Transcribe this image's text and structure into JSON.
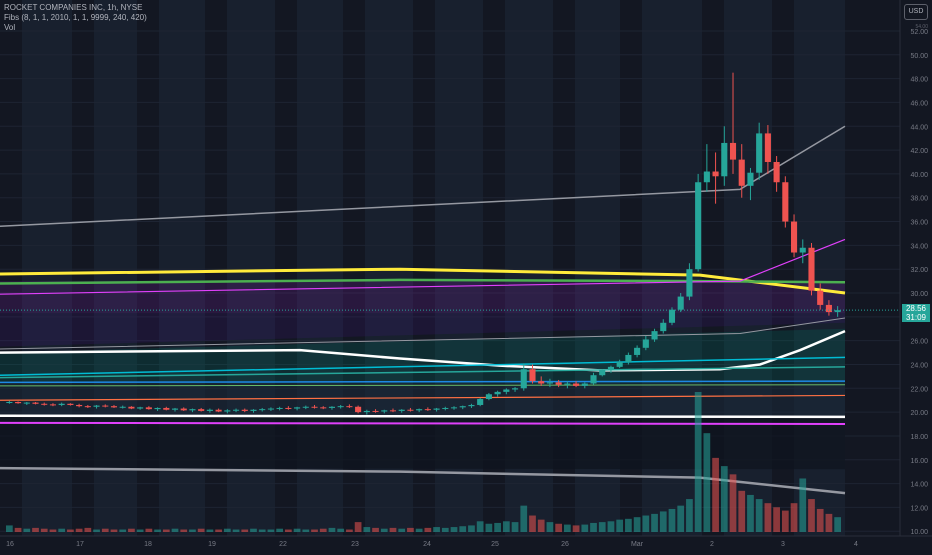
{
  "legend": {
    "symbol_line": "ROCKET COMPANIES INC, 1h, NYSE",
    "fibs_line": "Fibs (8, 1, 1, 2010, 1, 1, 9999, 240, 420)",
    "vol_line": "Vol"
  },
  "price_axis": {
    "currency": "USD",
    "top_label": "54.00",
    "ticks": [
      "52.00",
      "50.00",
      "48.00",
      "46.00",
      "44.00",
      "42.00",
      "40.00",
      "38.00",
      "36.00",
      "34.00",
      "32.00",
      "30.00",
      "28.00",
      "26.00",
      "24.00",
      "22.00",
      "20.00",
      "18.00",
      "16.00",
      "14.00",
      "12.00",
      "10.00"
    ],
    "last_price": "28.56",
    "countdown": "31:09"
  },
  "time_axis": {
    "labels": [
      "16",
      "17",
      "18",
      "19",
      "22",
      "23",
      "24",
      "25",
      "26",
      "Mar",
      "2",
      "3",
      "4"
    ]
  },
  "colors": {
    "background": "#131722",
    "up": "#26a69a",
    "down": "#ef5350",
    "accent": "#26a69a"
  },
  "chart_data": {
    "type": "candlestick",
    "title": "ROCKET COMPANIES INC, 1h, NYSE",
    "ylim": [
      9.6,
      54.6
    ],
    "ticks": [
      10,
      12,
      14,
      16,
      18,
      20,
      22,
      24,
      26,
      28,
      30,
      32,
      34,
      36,
      38,
      40,
      42,
      44,
      46,
      48,
      50,
      52
    ],
    "sessions": [
      "16",
      "17",
      "18",
      "19",
      "22",
      "23",
      "24",
      "25",
      "26",
      "Mar",
      "2",
      "3"
    ],
    "last_price": 28.56,
    "ohlc": [
      [
        20.8,
        20.95,
        20.7,
        20.85
      ],
      [
        20.85,
        20.9,
        20.7,
        20.75
      ],
      [
        20.75,
        20.85,
        20.6,
        20.8
      ],
      [
        20.8,
        20.85,
        20.65,
        20.7
      ],
      [
        20.7,
        20.8,
        20.55,
        20.65
      ],
      [
        20.65,
        20.75,
        20.5,
        20.6
      ],
      [
        20.6,
        20.8,
        20.5,
        20.7
      ],
      [
        20.7,
        20.75,
        20.55,
        20.6
      ],
      [
        20.6,
        20.7,
        20.4,
        20.5
      ],
      [
        20.5,
        20.6,
        20.35,
        20.45
      ],
      [
        20.45,
        20.6,
        20.3,
        20.55
      ],
      [
        20.55,
        20.65,
        20.4,
        20.5
      ],
      [
        20.5,
        20.6,
        20.35,
        20.4
      ],
      [
        20.4,
        20.55,
        20.3,
        20.45
      ],
      [
        20.45,
        20.5,
        20.25,
        20.3
      ],
      [
        20.3,
        20.45,
        20.2,
        20.4
      ],
      [
        20.4,
        20.5,
        20.2,
        20.25
      ],
      [
        20.25,
        20.4,
        20.1,
        20.35
      ],
      [
        20.35,
        20.45,
        20.15,
        20.2
      ],
      [
        20.2,
        20.35,
        20.05,
        20.3
      ],
      [
        20.3,
        20.4,
        20.1,
        20.15
      ],
      [
        20.15,
        20.3,
        20.0,
        20.25
      ],
      [
        20.25,
        20.35,
        20.05,
        20.1
      ],
      [
        20.1,
        20.3,
        19.95,
        20.2
      ],
      [
        20.2,
        20.3,
        20.0,
        20.05
      ],
      [
        20.05,
        20.25,
        19.9,
        20.15
      ],
      [
        20.15,
        20.3,
        20.0,
        20.2
      ],
      [
        20.2,
        20.3,
        20.0,
        20.1
      ],
      [
        20.1,
        20.25,
        19.95,
        20.2
      ],
      [
        20.2,
        20.35,
        20.05,
        20.25
      ],
      [
        20.25,
        20.4,
        20.1,
        20.3
      ],
      [
        20.3,
        20.45,
        20.15,
        20.35
      ],
      [
        20.35,
        20.5,
        20.2,
        20.3
      ],
      [
        20.3,
        20.45,
        20.15,
        20.4
      ],
      [
        20.4,
        20.55,
        20.25,
        20.45
      ],
      [
        20.45,
        20.6,
        20.3,
        20.4
      ],
      [
        20.4,
        20.5,
        20.25,
        20.35
      ],
      [
        20.35,
        20.5,
        20.2,
        20.45
      ],
      [
        20.45,
        20.6,
        20.3,
        20.5
      ],
      [
        20.5,
        20.65,
        20.35,
        20.45
      ],
      [
        20.45,
        20.55,
        19.9,
        20.0
      ],
      [
        20.0,
        20.2,
        19.8,
        20.1
      ],
      [
        20.1,
        20.25,
        19.95,
        20.05
      ],
      [
        20.05,
        20.2,
        19.9,
        20.15
      ],
      [
        20.15,
        20.3,
        20.0,
        20.1
      ],
      [
        20.1,
        20.25,
        19.95,
        20.2
      ],
      [
        20.2,
        20.35,
        20.05,
        20.15
      ],
      [
        20.15,
        20.3,
        20.0,
        20.25
      ],
      [
        20.25,
        20.4,
        20.1,
        20.2
      ],
      [
        20.2,
        20.35,
        20.05,
        20.3
      ],
      [
        20.3,
        20.45,
        20.15,
        20.35
      ],
      [
        20.35,
        20.5,
        20.2,
        20.4
      ],
      [
        20.4,
        20.55,
        20.25,
        20.5
      ],
      [
        20.5,
        20.7,
        20.35,
        20.6
      ],
      [
        20.6,
        21.2,
        20.5,
        21.1
      ],
      [
        21.1,
        21.6,
        21.0,
        21.5
      ],
      [
        21.5,
        21.8,
        21.3,
        21.7
      ],
      [
        21.7,
        22.0,
        21.5,
        21.9
      ],
      [
        21.9,
        22.1,
        21.7,
        22.0
      ],
      [
        22.0,
        24.1,
        21.8,
        23.6
      ],
      [
        23.6,
        24.0,
        22.4,
        22.6
      ],
      [
        22.6,
        23.0,
        22.2,
        22.4
      ],
      [
        22.4,
        22.8,
        22.1,
        22.5
      ],
      [
        22.5,
        22.7,
        22.1,
        22.3
      ],
      [
        22.3,
        22.6,
        22.0,
        22.4
      ],
      [
        22.4,
        22.6,
        22.1,
        22.2
      ],
      [
        22.2,
        22.5,
        22.0,
        22.4
      ],
      [
        22.4,
        23.3,
        22.3,
        23.1
      ],
      [
        23.1,
        23.6,
        23.0,
        23.5
      ],
      [
        23.5,
        23.9,
        23.3,
        23.8
      ],
      [
        23.8,
        24.4,
        23.7,
        24.2
      ],
      [
        24.2,
        25.0,
        24.0,
        24.8
      ],
      [
        24.8,
        25.6,
        24.6,
        25.4
      ],
      [
        25.4,
        26.4,
        25.2,
        26.1
      ],
      [
        26.1,
        27.0,
        25.9,
        26.8
      ],
      [
        26.8,
        27.8,
        26.6,
        27.5
      ],
      [
        27.5,
        28.8,
        27.3,
        28.6
      ],
      [
        28.6,
        30.0,
        28.4,
        29.7
      ],
      [
        29.7,
        32.5,
        29.4,
        32.0
      ],
      [
        32.0,
        40.0,
        31.8,
        39.3
      ],
      [
        39.3,
        42.5,
        38.5,
        40.2
      ],
      [
        40.2,
        41.8,
        37.5,
        39.8
      ],
      [
        39.8,
        44.0,
        39.0,
        42.6
      ],
      [
        42.6,
        48.5,
        40.0,
        41.2
      ],
      [
        41.2,
        42.5,
        38.0,
        39.0
      ],
      [
        39.0,
        40.5,
        37.8,
        40.1
      ],
      [
        40.1,
        44.3,
        39.5,
        43.4
      ],
      [
        43.4,
        44.1,
        40.0,
        41.0
      ],
      [
        41.0,
        41.5,
        38.5,
        39.3
      ],
      [
        39.3,
        39.8,
        35.5,
        36.0
      ],
      [
        36.0,
        36.6,
        33.0,
        33.4
      ],
      [
        33.4,
        34.5,
        32.5,
        33.8
      ],
      [
        33.8,
        34.2,
        29.8,
        30.2
      ],
      [
        30.2,
        30.8,
        28.6,
        29.0
      ],
      [
        29.0,
        29.4,
        28.1,
        28.4
      ],
      [
        28.4,
        28.9,
        28.0,
        28.56
      ]
    ],
    "volume": [
      0.8,
      0.5,
      0.4,
      0.5,
      0.4,
      0.3,
      0.4,
      0.3,
      0.4,
      0.5,
      0.3,
      0.4,
      0.3,
      0.3,
      0.4,
      0.3,
      0.4,
      0.3,
      0.3,
      0.4,
      0.3,
      0.3,
      0.4,
      0.3,
      0.3,
      0.4,
      0.3,
      0.3,
      0.4,
      0.3,
      0.3,
      0.4,
      0.3,
      0.4,
      0.3,
      0.3,
      0.4,
      0.5,
      0.4,
      0.3,
      1.2,
      0.6,
      0.5,
      0.4,
      0.5,
      0.4,
      0.5,
      0.4,
      0.5,
      0.6,
      0.5,
      0.6,
      0.7,
      0.8,
      1.3,
      1.0,
      1.1,
      1.3,
      1.2,
      3.2,
      2.0,
      1.5,
      1.2,
      1.0,
      0.9,
      0.8,
      0.9,
      1.1,
      1.2,
      1.3,
      1.5,
      1.6,
      1.8,
      2.0,
      2.2,
      2.5,
      2.8,
      3.2,
      4.0,
      17.0,
      12.0,
      9.0,
      8.0,
      7.0,
      5.0,
      4.5,
      4.0,
      3.5,
      3.0,
      2.6,
      3.5,
      6.5,
      4.0,
      2.8,
      2.2,
      1.8
    ],
    "overlays": [
      {
        "color": "#9598a1",
        "width": 1.5,
        "points": [
          [
            0,
            35.6
          ],
          [
            740,
            38.7
          ],
          [
            845,
            44.0
          ]
        ]
      },
      {
        "color": "#ffeb3b",
        "width": 3,
        "points": [
          [
            0,
            31.6
          ],
          [
            400,
            32.0
          ],
          [
            700,
            31.5
          ],
          [
            845,
            30.0
          ]
        ]
      },
      {
        "color": "#4caf50",
        "width": 2.5,
        "points": [
          [
            0,
            30.8
          ],
          [
            400,
            31.1
          ],
          [
            700,
            31.0
          ],
          [
            845,
            30.9
          ]
        ]
      },
      {
        "color": "#e040fb",
        "width": 1.2,
        "points": [
          [
            0,
            29.9
          ],
          [
            740,
            31.0
          ],
          [
            845,
            34.5
          ]
        ]
      },
      {
        "color": "#9598a1",
        "width": 1,
        "points": [
          [
            0,
            25.3
          ],
          [
            740,
            26.6
          ],
          [
            845,
            27.9
          ]
        ]
      },
      {
        "color": "#ffffff",
        "width": 2.5,
        "points": [
          [
            0,
            25.0
          ],
          [
            300,
            25.2
          ],
          [
            400,
            24.5
          ],
          [
            500,
            23.9
          ],
          [
            600,
            23.5
          ],
          [
            720,
            23.6
          ],
          [
            760,
            24.0
          ],
          [
            800,
            25.2
          ],
          [
            845,
            26.8
          ]
        ]
      },
      {
        "color": "#00bcd4",
        "width": 1.5,
        "points": [
          [
            0,
            23.1
          ],
          [
            845,
            24.6
          ]
        ]
      },
      {
        "color": "#26a69a",
        "width": 1.5,
        "points": [
          [
            0,
            22.9
          ],
          [
            845,
            23.8
          ]
        ]
      },
      {
        "color": "#1e88e5",
        "width": 1.5,
        "points": [
          [
            0,
            22.5
          ],
          [
            845,
            22.6
          ]
        ]
      },
      {
        "color": "#66bb6a",
        "width": 1,
        "points": [
          [
            0,
            22.2
          ],
          [
            845,
            22.3
          ]
        ]
      },
      {
        "color": "#ff7043",
        "width": 1.2,
        "points": [
          [
            0,
            21.0
          ],
          [
            845,
            21.4
          ]
        ]
      },
      {
        "color": "#ffffff",
        "width": 2.5,
        "points": [
          [
            0,
            19.7
          ],
          [
            845,
            19.6
          ]
        ]
      },
      {
        "color": "#e040fb",
        "width": 2,
        "points": [
          [
            0,
            19.1
          ],
          [
            845,
            19.0
          ]
        ]
      },
      {
        "color": "#9598a1",
        "width": 2.5,
        "points": [
          [
            0,
            15.3
          ],
          [
            400,
            15.0
          ],
          [
            700,
            14.5
          ],
          [
            845,
            13.2
          ]
        ]
      }
    ]
  }
}
